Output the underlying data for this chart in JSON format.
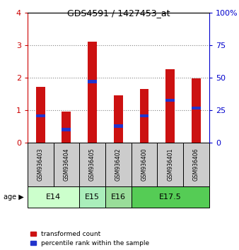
{
  "title": "GDS4591 / 1427453_at",
  "samples": [
    "GSM936403",
    "GSM936404",
    "GSM936405",
    "GSM936402",
    "GSM936400",
    "GSM936401",
    "GSM936406"
  ],
  "transformed_counts": [
    1.72,
    0.96,
    3.1,
    1.45,
    1.64,
    2.25,
    1.97
  ],
  "percentile_ranks": [
    0.82,
    0.4,
    1.88,
    0.5,
    0.82,
    1.3,
    1.06
  ],
  "age_groups": [
    {
      "label": "E14",
      "samples": [
        "GSM936403",
        "GSM936404"
      ],
      "color": "#ccffcc"
    },
    {
      "label": "E15",
      "samples": [
        "GSM936405"
      ],
      "color": "#aaeebb"
    },
    {
      "label": "E16",
      "samples": [
        "GSM936402"
      ],
      "color": "#99dd99"
    },
    {
      "label": "E17.5",
      "samples": [
        "GSM936400",
        "GSM936401",
        "GSM936406"
      ],
      "color": "#55cc55"
    }
  ],
  "bar_color": "#cc1111",
  "percentile_color": "#2233cc",
  "ylim_left": [
    0,
    4
  ],
  "ylim_right": [
    0,
    100
  ],
  "yticks_left": [
    0,
    1,
    2,
    3,
    4
  ],
  "yticks_right": [
    0,
    25,
    50,
    75,
    100
  ],
  "legend_labels": [
    "transformed count",
    "percentile rank within the sample"
  ],
  "bar_width": 0.35,
  "percentile_bar_height": 0.1,
  "bg_sample": "#cccccc",
  "ylabel_left_color": "#cc0000",
  "ylabel_right_color": "#0000cc"
}
